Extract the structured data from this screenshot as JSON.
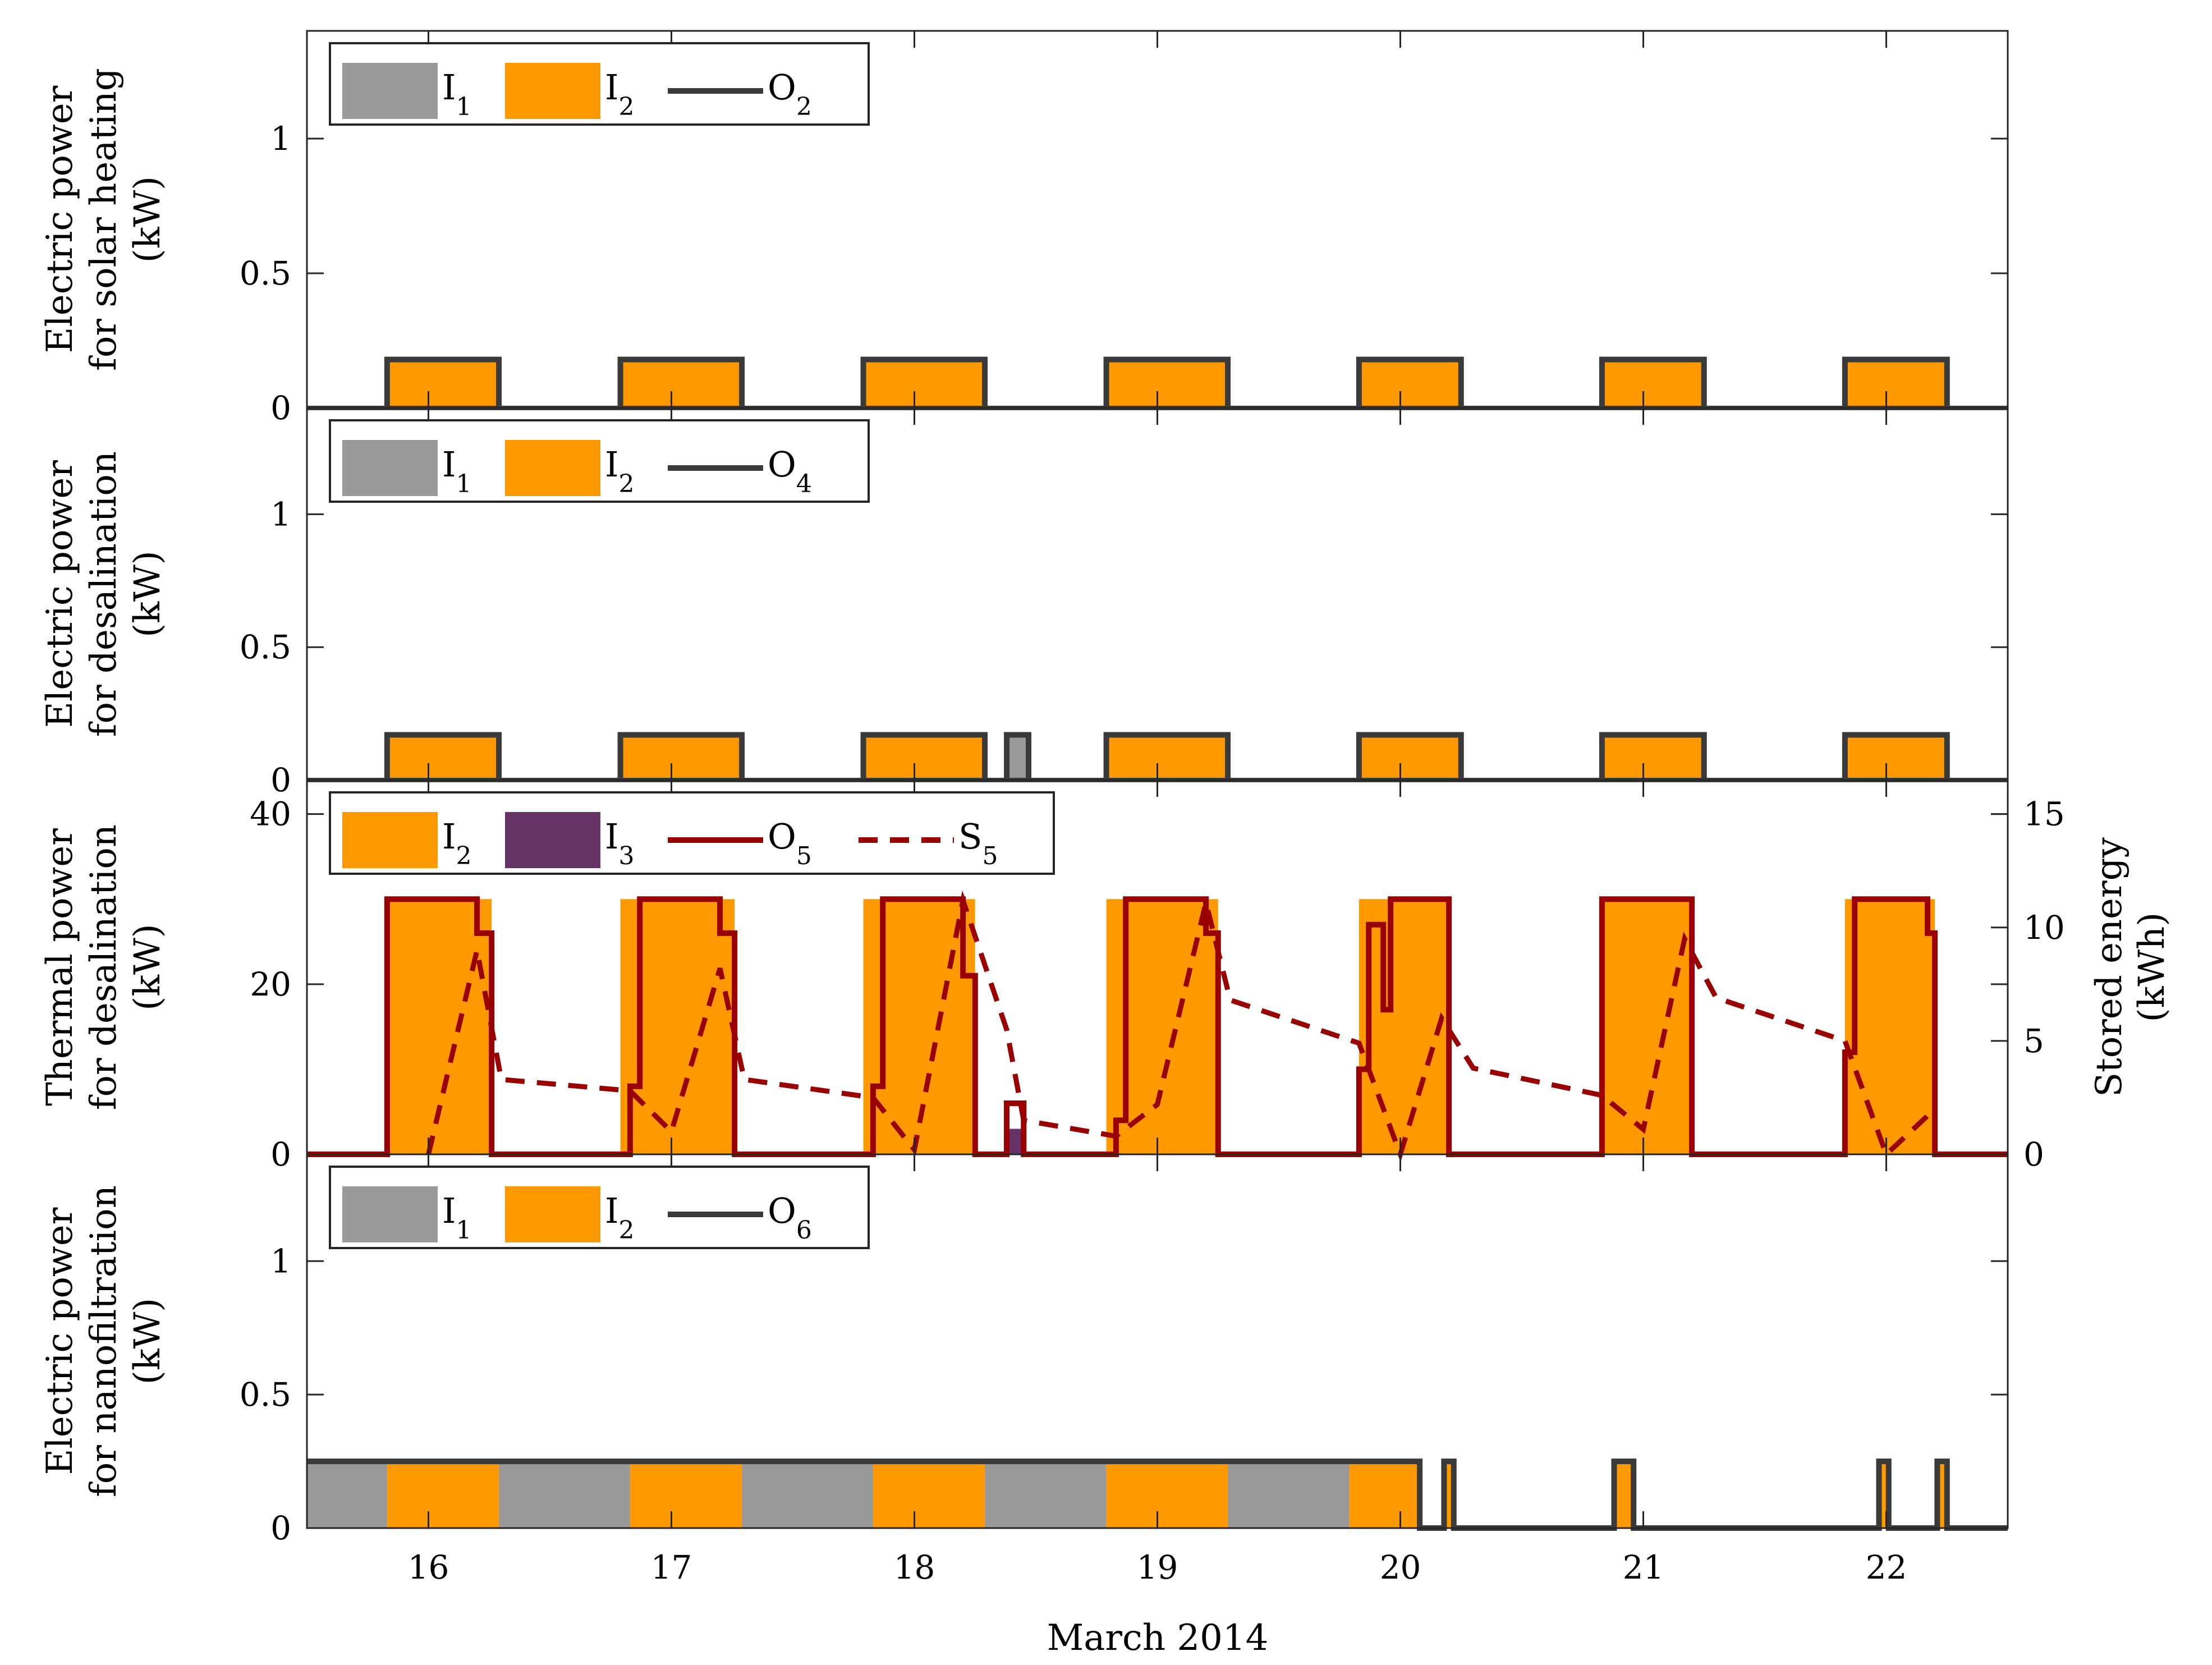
{
  "chart_data": {
    "type": "step-area",
    "xlabel": "March 2014",
    "x_ticks": [
      16,
      17,
      18,
      19,
      20,
      21,
      22
    ],
    "xlim": [
      15.5,
      22.5
    ],
    "colors": {
      "I1": "#999999",
      "I2": "#ff9900",
      "I3": "#663366",
      "O_electric": "#3a3a3a",
      "O5": "#990000",
      "S5": "#990000"
    },
    "panels": [
      {
        "id": "solar_heating",
        "ylabel_lines": [
          "Electric power",
          "for solar heating",
          "(kW)"
        ],
        "ylim": [
          0,
          1.4
        ],
        "y_ticks": [
          0,
          0.5,
          1
        ],
        "y_tick_labels": [
          "0",
          "0.5",
          "1"
        ],
        "legend": [
          {
            "kind": "patch",
            "series": "I1",
            "base": "I",
            "sub": "1"
          },
          {
            "kind": "patch",
            "series": "I2",
            "base": "I",
            "sub": "2"
          },
          {
            "kind": "line",
            "series": "O",
            "base": "O",
            "sub": "2"
          }
        ],
        "pulses": [
          {
            "start": 15.83,
            "end": 16.29,
            "value": 0.18,
            "source": "I2"
          },
          {
            "start": 16.79,
            "end": 17.29,
            "value": 0.18,
            "source": "I2"
          },
          {
            "start": 17.79,
            "end": 18.29,
            "value": 0.18,
            "source": "I2"
          },
          {
            "start": 18.79,
            "end": 19.29,
            "value": 0.18,
            "source": "I2"
          },
          {
            "start": 19.83,
            "end": 20.25,
            "value": 0.18,
            "source": "I2"
          },
          {
            "start": 20.83,
            "end": 21.25,
            "value": 0.18,
            "source": "I2"
          },
          {
            "start": 21.83,
            "end": 22.25,
            "value": 0.18,
            "source": "I2"
          }
        ]
      },
      {
        "id": "desalination_electric",
        "ylabel_lines": [
          "Electric power",
          "for desalination",
          "(kW)"
        ],
        "ylim": [
          0,
          1.4
        ],
        "y_ticks": [
          0,
          0.5,
          1
        ],
        "y_tick_labels": [
          "0",
          "0.5",
          "1"
        ],
        "legend": [
          {
            "kind": "patch",
            "series": "I1",
            "base": "I",
            "sub": "1"
          },
          {
            "kind": "patch",
            "series": "I2",
            "base": "I",
            "sub": "2"
          },
          {
            "kind": "line",
            "series": "O",
            "base": "O",
            "sub": "4"
          }
        ],
        "pulses": [
          {
            "start": 15.83,
            "end": 16.29,
            "value": 0.17,
            "source": "I2"
          },
          {
            "start": 16.79,
            "end": 17.29,
            "value": 0.17,
            "source": "I2"
          },
          {
            "start": 17.79,
            "end": 18.29,
            "value": 0.17,
            "source": "I2"
          },
          {
            "start": 18.38,
            "end": 18.47,
            "value": 0.17,
            "source": "I1"
          },
          {
            "start": 18.79,
            "end": 19.29,
            "value": 0.17,
            "source": "I2"
          },
          {
            "start": 19.83,
            "end": 20.25,
            "value": 0.17,
            "source": "I2"
          },
          {
            "start": 20.83,
            "end": 21.25,
            "value": 0.17,
            "source": "I2"
          },
          {
            "start": 21.83,
            "end": 22.25,
            "value": 0.17,
            "source": "I2"
          }
        ]
      },
      {
        "id": "desalination_thermal",
        "ylabel_lines": [
          "Thermal power",
          "for desalination",
          "(kW)"
        ],
        "ylim": [
          0,
          44
        ],
        "y_ticks": [
          0,
          20,
          40
        ],
        "y_tick_labels": [
          "0",
          "20",
          "40"
        ],
        "y2label_lines": [
          "Stored energy",
          "(kWh)"
        ],
        "y2lim": [
          0,
          16.5
        ],
        "y2_ticks": [
          0,
          5,
          10,
          15
        ],
        "y2_tick_labels": [
          "0",
          "5",
          "10",
          "15"
        ],
        "legend": [
          {
            "kind": "patch",
            "series": "I2",
            "base": "I",
            "sub": "2"
          },
          {
            "kind": "patch",
            "series": "I3",
            "base": "I",
            "sub": "3"
          },
          {
            "kind": "line",
            "series": "O5",
            "base": "O",
            "sub": "5"
          },
          {
            "kind": "dashed",
            "series": "S5",
            "base": "S",
            "sub": "5"
          }
        ],
        "output_step": [
          [
            15.5,
            0
          ],
          [
            15.83,
            0
          ],
          [
            15.83,
            30
          ],
          [
            16.2,
            30
          ],
          [
            16.2,
            26
          ],
          [
            16.26,
            26
          ],
          [
            16.26,
            0
          ],
          [
            16.83,
            0
          ],
          [
            16.83,
            8
          ],
          [
            16.87,
            8
          ],
          [
            16.87,
            30
          ],
          [
            17.2,
            30
          ],
          [
            17.2,
            26
          ],
          [
            17.26,
            26
          ],
          [
            17.26,
            0
          ],
          [
            17.83,
            0
          ],
          [
            17.83,
            8
          ],
          [
            17.87,
            8
          ],
          [
            17.87,
            30
          ],
          [
            18.2,
            30
          ],
          [
            18.2,
            21
          ],
          [
            18.25,
            21
          ],
          [
            18.25,
            0
          ],
          [
            18.38,
            0
          ],
          [
            18.38,
            6
          ],
          [
            18.45,
            6
          ],
          [
            18.45,
            0
          ],
          [
            18.83,
            0
          ],
          [
            18.83,
            4
          ],
          [
            18.87,
            4
          ],
          [
            18.87,
            30
          ],
          [
            19.2,
            30
          ],
          [
            19.2,
            26
          ],
          [
            19.25,
            26
          ],
          [
            19.25,
            0
          ],
          [
            19.83,
            0
          ],
          [
            19.83,
            10
          ],
          [
            19.87,
            10
          ],
          [
            19.87,
            27
          ],
          [
            19.93,
            27
          ],
          [
            19.93,
            17
          ],
          [
            19.96,
            17
          ],
          [
            19.96,
            30
          ],
          [
            20.2,
            30
          ],
          [
            20.2,
            0
          ],
          [
            20.83,
            0
          ],
          [
            20.83,
            30
          ],
          [
            21.2,
            30
          ],
          [
            21.2,
            0
          ],
          [
            21.83,
            0
          ],
          [
            21.83,
            12
          ],
          [
            21.87,
            12
          ],
          [
            21.87,
            30
          ],
          [
            22.17,
            30
          ],
          [
            22.17,
            26
          ],
          [
            22.2,
            26
          ],
          [
            22.2,
            0
          ],
          [
            22.5,
            0
          ]
        ],
        "storage_kWh": [
          [
            16.0,
            0
          ],
          [
            16.2,
            9
          ],
          [
            16.3,
            3.3
          ],
          [
            16.83,
            2.8
          ],
          [
            17.0,
            1.0
          ],
          [
            17.2,
            8.2
          ],
          [
            17.3,
            3.3
          ],
          [
            17.83,
            2.5
          ],
          [
            18.0,
            0.2
          ],
          [
            18.2,
            11.2
          ],
          [
            18.38,
            5.5
          ],
          [
            18.45,
            1.5
          ],
          [
            18.83,
            0.8
          ],
          [
            19.0,
            2.2
          ],
          [
            19.2,
            11.1
          ],
          [
            19.3,
            6.8
          ],
          [
            19.83,
            4.9
          ],
          [
            20.0,
            0
          ],
          [
            20.17,
            6.0
          ],
          [
            20.3,
            3.8
          ],
          [
            20.83,
            2.6
          ],
          [
            21.0,
            1.1
          ],
          [
            21.17,
            9.5
          ],
          [
            21.3,
            6.9
          ],
          [
            21.83,
            5.0
          ],
          [
            22.0,
            0
          ],
          [
            22.2,
            2.0
          ]
        ],
        "pulses": [
          {
            "start": 15.83,
            "end": 16.26,
            "value": 30,
            "source": "I2"
          },
          {
            "start": 16.79,
            "end": 17.26,
            "value": 30,
            "source": "I2"
          },
          {
            "start": 17.79,
            "end": 18.25,
            "value": 30,
            "source": "I2"
          },
          {
            "start": 18.38,
            "end": 18.45,
            "value": 3,
            "source": "I3"
          },
          {
            "start": 18.79,
            "end": 19.25,
            "value": 30,
            "source": "I2"
          },
          {
            "start": 19.83,
            "end": 20.2,
            "value": 30,
            "source": "I2"
          },
          {
            "start": 20.83,
            "end": 21.2,
            "value": 30,
            "source": "I2"
          },
          {
            "start": 21.83,
            "end": 22.2,
            "value": 30,
            "source": "I2"
          }
        ]
      },
      {
        "id": "nanofiltration",
        "ylabel_lines": [
          "Electric power",
          "for nanofiltration",
          "(kW)"
        ],
        "ylim": [
          0,
          1.4
        ],
        "y_ticks": [
          0,
          0.5,
          1
        ],
        "y_tick_labels": [
          "0",
          "0.5",
          "1"
        ],
        "legend": [
          {
            "kind": "patch",
            "series": "I1",
            "base": "I",
            "sub": "1"
          },
          {
            "kind": "patch",
            "series": "I2",
            "base": "I",
            "sub": "2"
          },
          {
            "kind": "line",
            "series": "O",
            "base": "O",
            "sub": "6"
          }
        ],
        "pulses": [
          {
            "start": 15.5,
            "end": 15.83,
            "value": 0.25,
            "source": "I1"
          },
          {
            "start": 15.83,
            "end": 16.29,
            "value": 0.25,
            "source": "I2"
          },
          {
            "start": 16.29,
            "end": 16.83,
            "value": 0.25,
            "source": "I1"
          },
          {
            "start": 16.83,
            "end": 17.29,
            "value": 0.25,
            "source": "I2"
          },
          {
            "start": 17.29,
            "end": 17.83,
            "value": 0.25,
            "source": "I1"
          },
          {
            "start": 17.83,
            "end": 18.29,
            "value": 0.25,
            "source": "I2"
          },
          {
            "start": 18.29,
            "end": 18.79,
            "value": 0.25,
            "source": "I1"
          },
          {
            "start": 18.79,
            "end": 19.29,
            "value": 0.25,
            "source": "I2"
          },
          {
            "start": 19.29,
            "end": 19.79,
            "value": 0.25,
            "source": "I1"
          },
          {
            "start": 19.79,
            "end": 20.08,
            "value": 0.25,
            "source": "I2"
          },
          {
            "start": 20.18,
            "end": 20.22,
            "value": 0.25,
            "source": "I2"
          },
          {
            "start": 20.88,
            "end": 20.96,
            "value": 0.25,
            "source": "I2"
          },
          {
            "start": 21.97,
            "end": 22.01,
            "value": 0.25,
            "source": "I2"
          },
          {
            "start": 22.21,
            "end": 22.25,
            "value": 0.25,
            "source": "I2"
          }
        ],
        "output_step": [
          [
            15.5,
            0.25
          ],
          [
            20.08,
            0.25
          ],
          [
            20.08,
            0
          ],
          [
            20.18,
            0
          ],
          [
            20.18,
            0.25
          ],
          [
            20.22,
            0.25
          ],
          [
            20.22,
            0
          ],
          [
            20.88,
            0
          ],
          [
            20.88,
            0.25
          ],
          [
            20.96,
            0.25
          ],
          [
            20.96,
            0
          ],
          [
            21.97,
            0
          ],
          [
            21.97,
            0.25
          ],
          [
            22.01,
            0.25
          ],
          [
            22.01,
            0
          ],
          [
            22.21,
            0
          ],
          [
            22.21,
            0.25
          ],
          [
            22.25,
            0.25
          ],
          [
            22.25,
            0
          ],
          [
            22.5,
            0
          ]
        ]
      }
    ]
  }
}
